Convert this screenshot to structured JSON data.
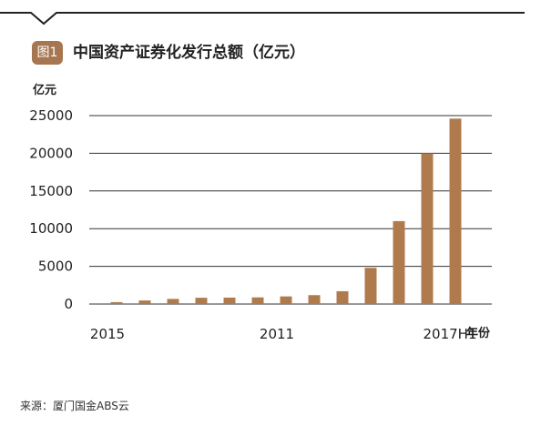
{
  "header": {
    "badge": "图1",
    "title": "中国资产证券化发行总额（亿元）"
  },
  "source": "来源：厦门国金ABS云",
  "colors": {
    "bar": "#B07B4C",
    "badge": "#A67650",
    "grid": "#333333"
  },
  "chart_data": {
    "type": "bar",
    "title": "中国资产证券化发行总额（亿元）",
    "ylabel": "亿元",
    "xlabel": "年份",
    "ylim": [
      0,
      25000
    ],
    "yticks": [
      0,
      5000,
      10000,
      15000,
      20000,
      25000
    ],
    "x_tick_labels": [
      "2015",
      "2011",
      "2017H1"
    ],
    "x_tick_positions": [
      0,
      6,
      12
    ],
    "values": [
      250,
      470,
      680,
      830,
      850,
      880,
      1010,
      1180,
      1700,
      4800,
      11000,
      20000,
      24600
    ],
    "grid": true,
    "legend": "none"
  }
}
